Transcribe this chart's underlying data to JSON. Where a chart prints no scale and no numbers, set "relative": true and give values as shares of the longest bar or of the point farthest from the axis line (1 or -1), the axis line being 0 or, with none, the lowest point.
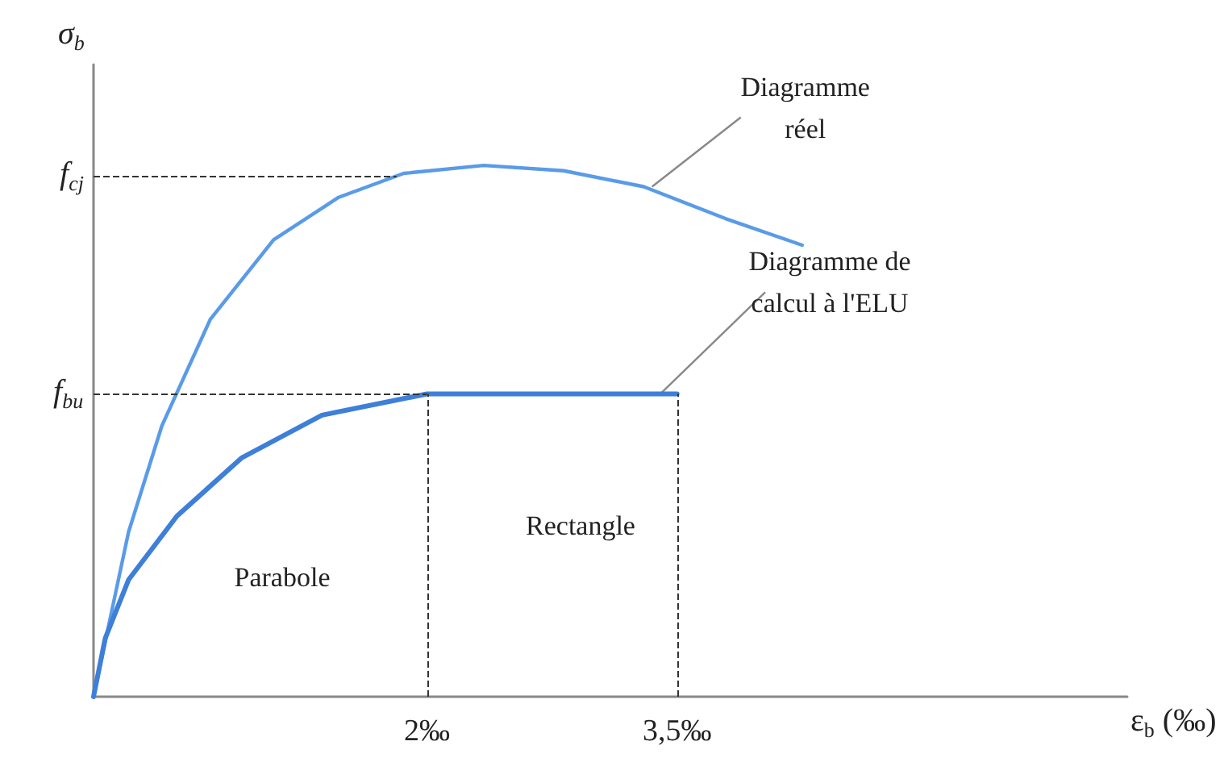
{
  "chart_data": {
    "type": "line",
    "relative": true,
    "xlabel": "ε$_{b}$ (‰)",
    "ylabel": "σ$_{b}$",
    "xlim": [
      0,
      6.2
    ],
    "xticks": [
      {
        "value": 2,
        "label": "2‰"
      },
      {
        "value": 3.5,
        "label": "3,5‰"
      }
    ],
    "series": [
      {
        "color": "#5a9be8",
        "x": [
          0,
          0.21,
          0.41,
          0.7,
          1.08,
          1.47,
          1.86,
          2.34,
          2.82,
          3.3,
          3.79,
          4.25
        ],
        "values": [
          0,
          0.31,
          0.51,
          0.71,
          0.86,
          0.94,
          0.985,
          1,
          0.99,
          0.96,
          0.9,
          0.85
        ]
      },
      {
        "color": "#3d7fd9",
        "x": [
          0,
          0.07,
          0.21,
          0.5,
          0.89,
          1.37,
          2,
          3.5
        ],
        "values": [
          0,
          0.11,
          0.22,
          0.34,
          0.45,
          0.53,
          0.57,
          0.57
        ]
      }
    ],
    "ref_lines": [
      {
        "axis": "y",
        "value": 0.98,
        "label": "f$_{cj}$",
        "line_style": "dashed",
        "color": "#333333"
      },
      {
        "axis": "y",
        "value": 0.57,
        "label": "f$_{bu}$",
        "line_style": "dashed",
        "color": "#333333"
      },
      {
        "axis": "x",
        "value": 2,
        "line_style": "dashed",
        "color": "#333333"
      },
      {
        "axis": "x",
        "value": 3.5,
        "line_style": "dashed",
        "color": "#333333"
      }
    ],
    "annotations": [
      {
        "text": "Diagramme\nréel",
        "x": 3.35,
        "y": 0.96
      },
      {
        "text": "Diagramme de\ncalcul à l'ELU",
        "x": 3.4,
        "y": 0.57
      },
      "Parabole",
      "Rectangle"
    ],
    "grid": false,
    "marker": "none",
    "line_style": "solid"
  }
}
